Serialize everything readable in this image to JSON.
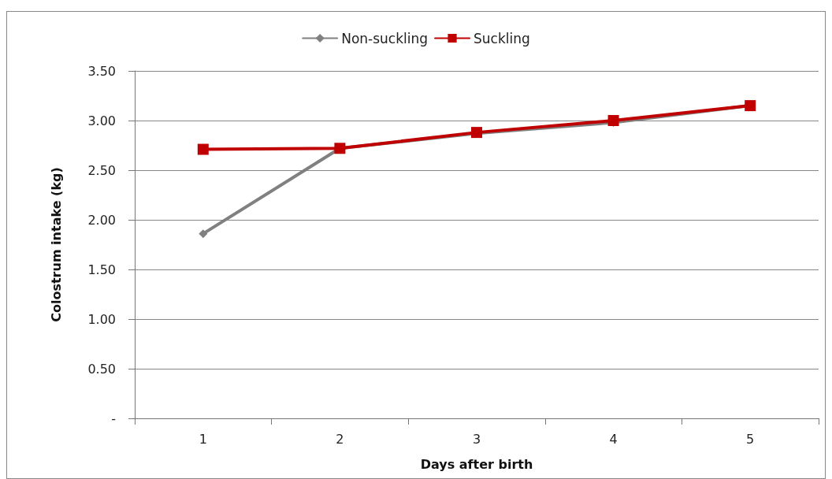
{
  "chart_data": {
    "type": "line",
    "xlabel": "Days after birth",
    "ylabel": "Colostrum intake (kg)",
    "categories": [
      "1",
      "2",
      "3",
      "4",
      "5"
    ],
    "series": [
      {
        "name": "Non-suckling",
        "color": "#808080",
        "marker": "diamond",
        "values": [
          1.86,
          2.72,
          2.87,
          2.98,
          3.15
        ]
      },
      {
        "name": "Suckling",
        "color": "#c00000",
        "marker": "square",
        "values": [
          2.71,
          2.72,
          2.88,
          3.0,
          3.15
        ]
      }
    ],
    "ylim": [
      0,
      3.5
    ],
    "yticks": [
      {
        "value": 0,
        "label": "-"
      },
      {
        "value": 0.5,
        "label": "0.50"
      },
      {
        "value": 1,
        "label": "1.00"
      },
      {
        "value": 1.5,
        "label": "1.50"
      },
      {
        "value": 2,
        "label": "2.00"
      },
      {
        "value": 2.5,
        "label": "2.50"
      },
      {
        "value": 3,
        "label": "3.00"
      },
      {
        "value": 3.5,
        "label": "3.50"
      }
    ],
    "grid": "y",
    "legend": "top",
    "line_style": "solid"
  }
}
